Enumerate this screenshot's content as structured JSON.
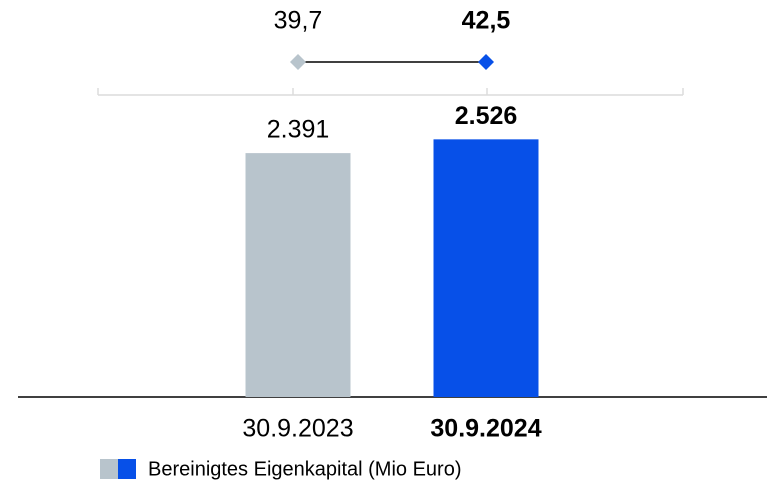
{
  "chart_data": [
    {
      "type": "bar",
      "categories": [
        "30.9.2023",
        "30.9.2024"
      ],
      "series": [
        {
          "name": "Bereinigtes Eigenkapital (Mio Euro)",
          "colors": [
            "#b8c4cc",
            "#0750e8"
          ],
          "values": [
            2391,
            2526
          ],
          "value_labels": [
            "2.391",
            "2.526"
          ]
        }
      ],
      "ylim": [
        0,
        3000
      ]
    },
    {
      "type": "line",
      "values": [
        39.7,
        42.5
      ],
      "value_labels": [
        "39,7",
        "42,5"
      ],
      "colors": [
        "#b8c4cc",
        "#0750e8"
      ],
      "color": "#000000"
    }
  ]
}
